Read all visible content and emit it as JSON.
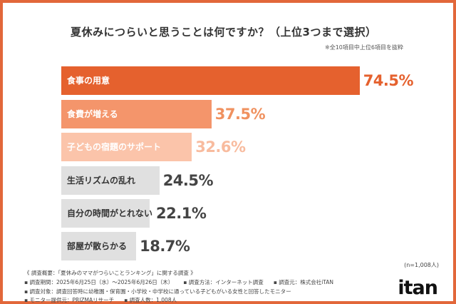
{
  "chart_data": {
    "type": "bar",
    "orientation": "horizontal",
    "title": "夏休みにつらいと思うことは何ですか？（上位3つまで選択）",
    "note": "※全10項目中上位6項目を抜粋",
    "categories": [
      "食事の用意",
      "食費が増える",
      "子どもの宿題のサポート",
      "生活リズムの乱れ",
      "自分の時間がとれない",
      "部屋が散らかる"
    ],
    "values": [
      74.5,
      37.5,
      32.6,
      24.5,
      22.1,
      18.7
    ],
    "value_labels": [
      "74.5%",
      "37.5%",
      "32.6%",
      "24.5%",
      "22.1%",
      "18.7%"
    ],
    "bar_colors": [
      "#e5612e",
      "#f4956b",
      "#fbc4aa",
      "#e0e0e0",
      "#e0e0e0",
      "#e0e0e0"
    ],
    "label_colors": [
      "#ffffff",
      "#ffffff",
      "#ffffff",
      "#333333",
      "#333333",
      "#333333"
    ],
    "value_colors": [
      "#e5612e",
      "#f0915f",
      "#f8bb9e",
      "#444444",
      "#444444",
      "#444444"
    ],
    "xlim": [
      0,
      100
    ],
    "grid": false
  },
  "sample": "(n=1,008人)",
  "footer": {
    "summary": "《 調査概要：「夏休みのママがつらいことランキング」に関する調査 》",
    "period": "▪ 調査期間：2025年6月25日（水）〜2025年6月26日（木）",
    "method": "▪ 調査方法：インターネット調査",
    "source": "▪ 調査元：株式会社iTAN",
    "target": "▪ 調査対象：調査回答時に幼稚園・保育園・小学校・中学校に通っている子どもがいる女性と回答したモニター",
    "provider": "▪ モニター提供元：PRIZMAリサーチ",
    "count": "▪ 調査人数：1,008人"
  },
  "logo": "itan",
  "frame_color": "#e2673a"
}
